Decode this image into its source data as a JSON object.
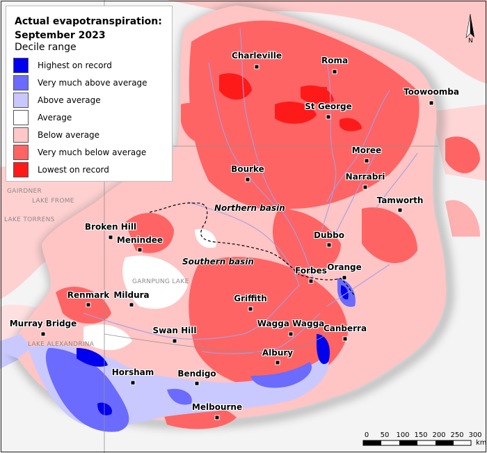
{
  "legend": {
    "title": "Actual evapotranspiration: September 2023",
    "subtitle": "Decile range",
    "items": [
      {
        "label": "Highest on record",
        "color": "#0000ee"
      },
      {
        "label": "Very much above average",
        "color": "#6b6bff"
      },
      {
        "label": "Above average",
        "color": "#c8c8ff"
      },
      {
        "label": "Average",
        "color": "#ffffff"
      },
      {
        "label": "Below average",
        "color": "#ffc8c8"
      },
      {
        "label": "Very much below average",
        "color": "#ff6464"
      },
      {
        "label": "Lowest on record",
        "color": "#ff1a1a"
      }
    ]
  },
  "towns": [
    {
      "name": "Charleville"
    },
    {
      "name": "Roma"
    },
    {
      "name": "Toowoomba"
    },
    {
      "name": "St George"
    },
    {
      "name": "Moree"
    },
    {
      "name": "Narrabri"
    },
    {
      "name": "Bourke"
    },
    {
      "name": "Tamworth"
    },
    {
      "name": "Broken Hill"
    },
    {
      "name": "Menindee"
    },
    {
      "name": "Dubbo"
    },
    {
      "name": "Orange"
    },
    {
      "name": "Forbes"
    },
    {
      "name": "Renmark"
    },
    {
      "name": "Mildura"
    },
    {
      "name": "Griffith"
    },
    {
      "name": "Wagga Wagga"
    },
    {
      "name": "Canberra"
    },
    {
      "name": "Murray Bridge"
    },
    {
      "name": "Swan Hill"
    },
    {
      "name": "Albury"
    },
    {
      "name": "Horsham"
    },
    {
      "name": "Bendigo"
    },
    {
      "name": "Melbourne"
    }
  ],
  "basins": {
    "northern": "Northern basin",
    "southern": "Southern basin"
  },
  "lakes": [
    {
      "name": "LAKE FROME"
    },
    {
      "name": "LAKE TORRENS"
    },
    {
      "name": "GAIRDNER"
    },
    {
      "name": "GARNPUNG LAKE"
    },
    {
      "name": "LAKE ALEXANDRINA"
    }
  ],
  "scale": {
    "ticks": [
      "0",
      "50",
      "100",
      "150",
      "200",
      "250",
      "300"
    ],
    "unit": "km"
  },
  "north_label": "N"
}
